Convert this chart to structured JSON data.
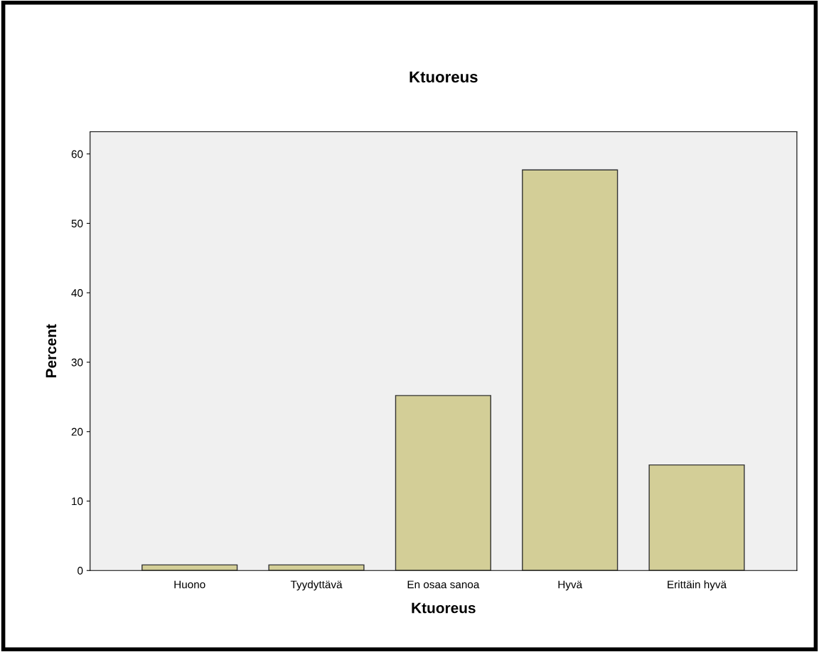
{
  "chart_data": {
    "type": "bar",
    "title": "Ktuoreus",
    "xlabel": "Ktuoreus",
    "ylabel": "Percent",
    "categories": [
      "Huono",
      "Tyydyttävä",
      "En osaa sanoa",
      "Hyvä",
      "Erittäin hyvä"
    ],
    "values": [
      0.8,
      0.8,
      25.2,
      57.7,
      15.2
    ],
    "color": "#d3ce97",
    "ylim": [
      0,
      63.2
    ],
    "yticks": [
      0,
      10,
      20,
      30,
      40,
      50,
      60
    ],
    "grid": false
  }
}
